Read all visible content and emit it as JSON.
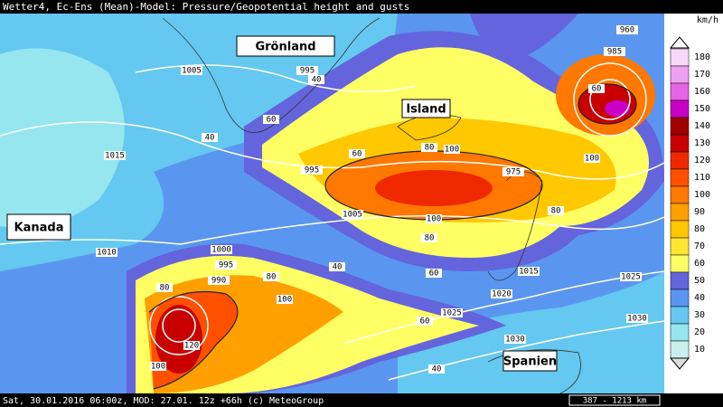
{
  "header": {
    "title": "Wetter4, Ec-Ens (Mean)-Model: Pressure/Geopotential height and gusts"
  },
  "footer": {
    "info": "Sat, 30.01.2016 06:00z, MOD: 27.01. 12z +66h (c) MeteoGroup",
    "scale": "387 - 1213 km"
  },
  "legend": {
    "unit": "km/h",
    "levels": [
      180,
      170,
      160,
      150,
      140,
      130,
      120,
      110,
      100,
      90,
      80,
      70,
      60,
      50,
      40,
      30,
      20,
      10
    ],
    "colors": [
      "#f8d8f8",
      "#f0a0f0",
      "#e664e6",
      "#c800c8",
      "#a00000",
      "#c80000",
      "#f02800",
      "#ff5000",
      "#ff7800",
      "#ffa000",
      "#ffc800",
      "#ffe632",
      "#ffff64",
      "#6464dc",
      "#5a96f0",
      "#64c8f0",
      "#96e6f0",
      "#c8f0f0"
    ]
  },
  "places": [
    "Grönland",
    "Island",
    "Kanada",
    "Spanien"
  ],
  "isobar_labels": [
    1005,
    995,
    1015,
    995,
    1005,
    1010,
    1000,
    995,
    990,
    1015,
    1020,
    1025,
    1030,
    1025,
    1030,
    985,
    960,
    975
  ],
  "gust_labels": [
    40,
    60,
    40,
    60,
    80,
    100,
    100,
    80,
    100,
    60,
    80,
    100,
    120,
    80,
    100,
    60,
    40,
    40,
    60,
    80
  ]
}
